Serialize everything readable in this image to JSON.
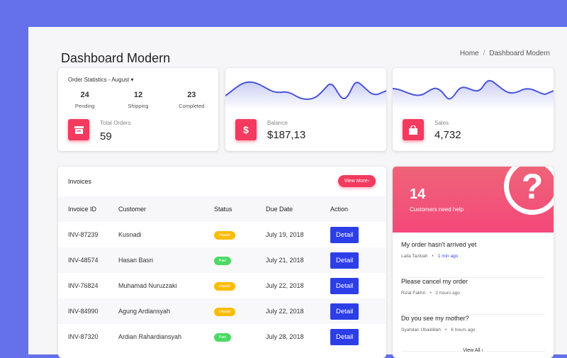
{
  "page": {
    "title": "Dashboard Modern",
    "breadcrumb": [
      "Home",
      "Dashboard Modern"
    ]
  },
  "order_stats": {
    "title": "Order Statistics - August",
    "stats": [
      {
        "value": "24",
        "label": "Pending"
      },
      {
        "value": "12",
        "label": "Shipping"
      },
      {
        "value": "23",
        "label": "Completed"
      }
    ],
    "total_label": "Total Orders",
    "total_value": "59",
    "icon": "archive-icon"
  },
  "balance": {
    "label": "Balance",
    "value": "$187,13",
    "icon": "dollar-icon"
  },
  "sales": {
    "label": "Sales",
    "value": "4,732",
    "icon": "shopping-bag-icon"
  },
  "invoices": {
    "title": "Invoices",
    "view_more": "View More",
    "columns": [
      "Invoice ID",
      "Customer",
      "Status",
      "Due Date",
      "Action"
    ],
    "rows": [
      {
        "id": "INV-87239",
        "customer": "Kusnadi",
        "status": "Unpaid",
        "due": "July 19, 2018",
        "action": "Detail"
      },
      {
        "id": "INV-48574",
        "customer": "Hasan Basri",
        "status": "Paid",
        "due": "July 21, 2018",
        "action": "Detail"
      },
      {
        "id": "INV-76824",
        "customer": "Muhamad Nuruzzaki",
        "status": "Unpaid",
        "due": "July 22, 2018",
        "action": "Detail"
      },
      {
        "id": "INV-84990",
        "customer": "Agung Ardiansyah",
        "status": "Unpaid",
        "due": "July 22, 2018",
        "action": "Detail"
      },
      {
        "id": "INV-87320",
        "customer": "Ardian Rahardiansyah",
        "status": "Paid",
        "due": "July 28, 2018",
        "action": "Detail"
      }
    ]
  },
  "status_colors": {
    "Paid": "#4cd964",
    "Unpaid": "#fbbc05"
  },
  "help": {
    "count": "14",
    "label": "Customers need help",
    "items": [
      {
        "question": "My order hasn't arrived yet",
        "author": "Laila Tazkiah",
        "time": "1 min ago"
      },
      {
        "question": "Please cancel my order",
        "author": "Rizal Fakhri",
        "time": "2 hours ago"
      },
      {
        "question": "Do you see my mother?",
        "author": "Syahdan Ubaidillah",
        "time": "6 hours ago"
      }
    ],
    "view_all": "View All"
  },
  "colors": {
    "accent": "#f43a5e",
    "primary": "#2c3ee8",
    "background": "#6471ea"
  }
}
